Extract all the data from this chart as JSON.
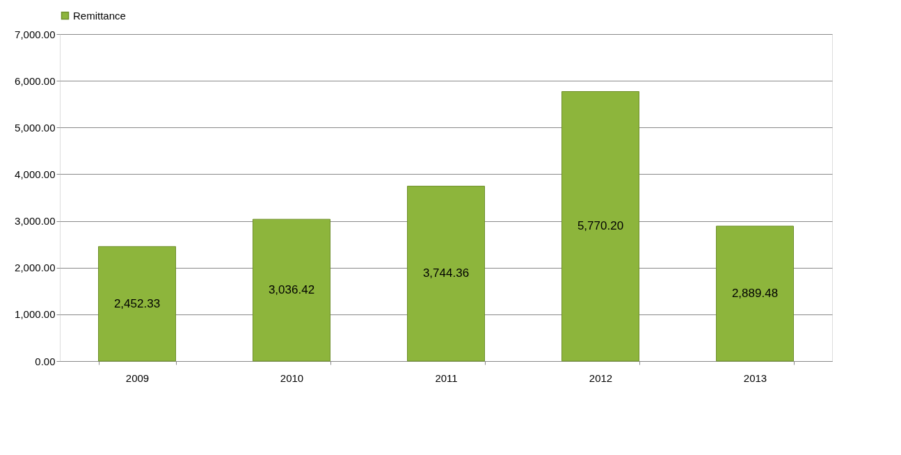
{
  "chart_data": {
    "type": "bar",
    "categories": [
      "2009",
      "2010",
      "2011",
      "2012",
      "2013"
    ],
    "series": [
      {
        "name": "Remittance",
        "color": "#8db53c",
        "values": [
          2452.33,
          3036.42,
          3744.36,
          5770.2,
          2889.48
        ]
      }
    ],
    "value_labels": [
      "2,452.33",
      "3,036.42",
      "3,744.36",
      "5,770.20",
      "2,889.48"
    ],
    "ylim": [
      0,
      7000
    ],
    "yticks": [
      {
        "value": 0,
        "label": "0.00"
      },
      {
        "value": 1000,
        "label": "1,000.00"
      },
      {
        "value": 2000,
        "label": "2,000.00"
      },
      {
        "value": 3000,
        "label": "3,000.00"
      },
      {
        "value": 4000,
        "label": "4,000.00"
      },
      {
        "value": 5000,
        "label": "5,000.00"
      },
      {
        "value": 6000,
        "label": "6,000.00"
      },
      {
        "value": 7000,
        "label": "7,000.00"
      }
    ],
    "grid": "y",
    "legend": "top"
  }
}
